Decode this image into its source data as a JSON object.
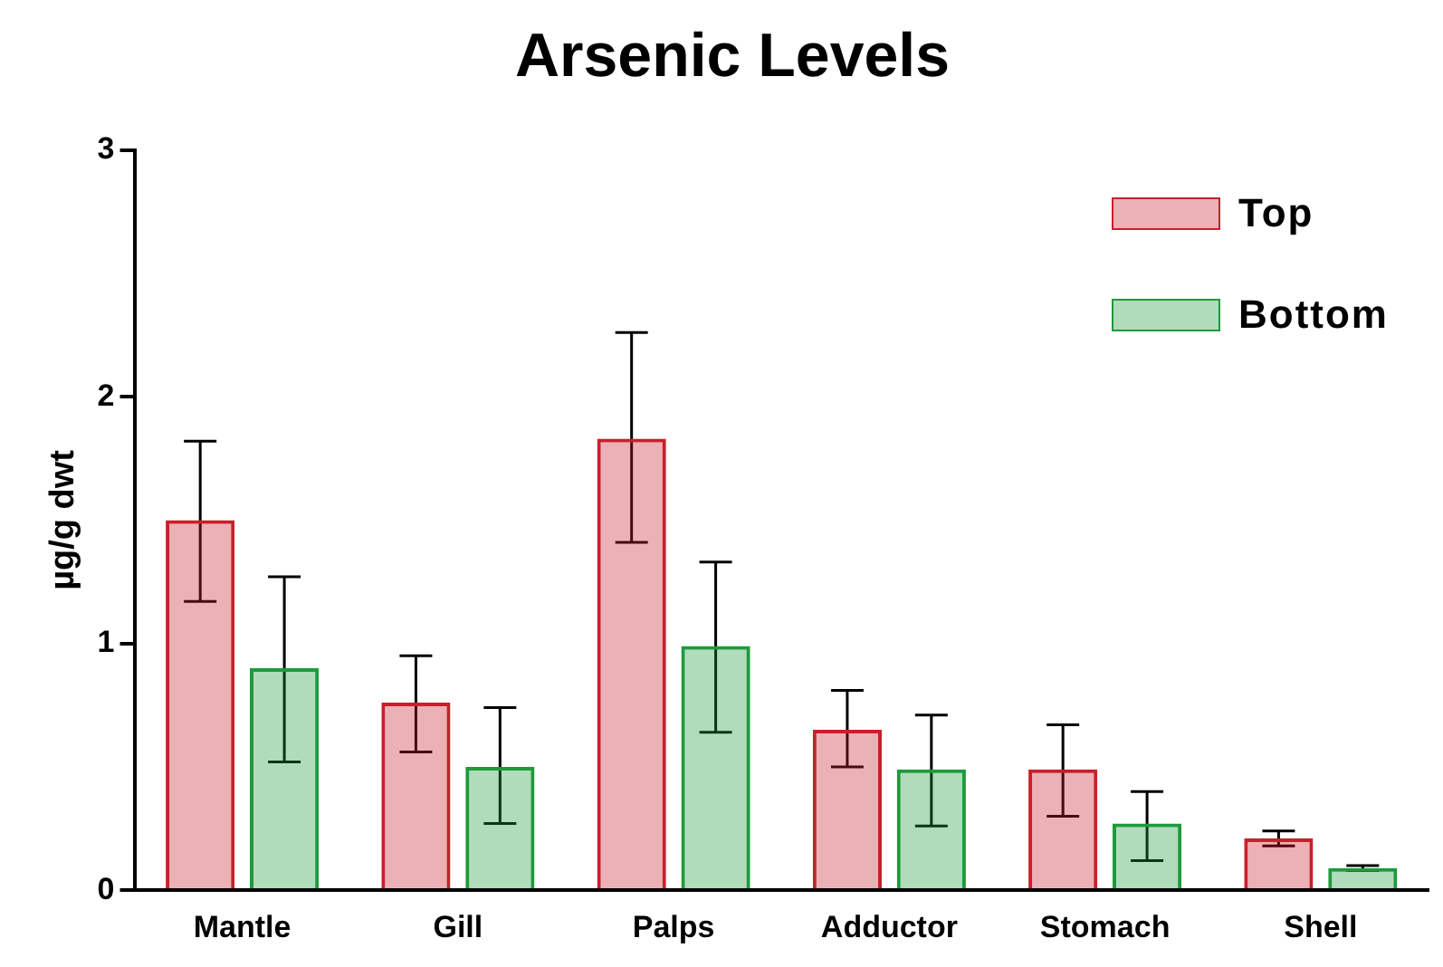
{
  "chart_data": {
    "type": "bar",
    "title": "Arsenic Levels",
    "ylabel": "µg/g dwt",
    "categories": [
      "Mantle",
      "Gill",
      "Palps",
      "Adductor",
      "Stomach",
      "Shell"
    ],
    "series": [
      {
        "name": "Top",
        "color": "#c8202c",
        "values": [
          1.5,
          0.76,
          1.83,
          0.65,
          0.49,
          0.21
        ],
        "errors": [
          [
            1.17,
            1.82
          ],
          [
            0.56,
            0.95
          ],
          [
            1.41,
            2.26
          ],
          [
            0.5,
            0.81
          ],
          [
            0.3,
            0.67
          ],
          [
            0.18,
            0.24
          ]
        ]
      },
      {
        "name": "Bottom",
        "color": "#1e9a3c",
        "values": [
          0.9,
          0.5,
          0.99,
          0.49,
          0.27,
          0.09
        ],
        "errors": [
          [
            0.52,
            1.27
          ],
          [
            0.27,
            0.74
          ],
          [
            0.64,
            1.33
          ],
          [
            0.26,
            0.71
          ],
          [
            0.12,
            0.4
          ],
          [
            0.08,
            0.1
          ]
        ]
      }
    ],
    "ylim": [
      0,
      3
    ],
    "yticks": [
      0,
      1,
      2,
      3
    ],
    "grid": false,
    "legend": "top right"
  }
}
